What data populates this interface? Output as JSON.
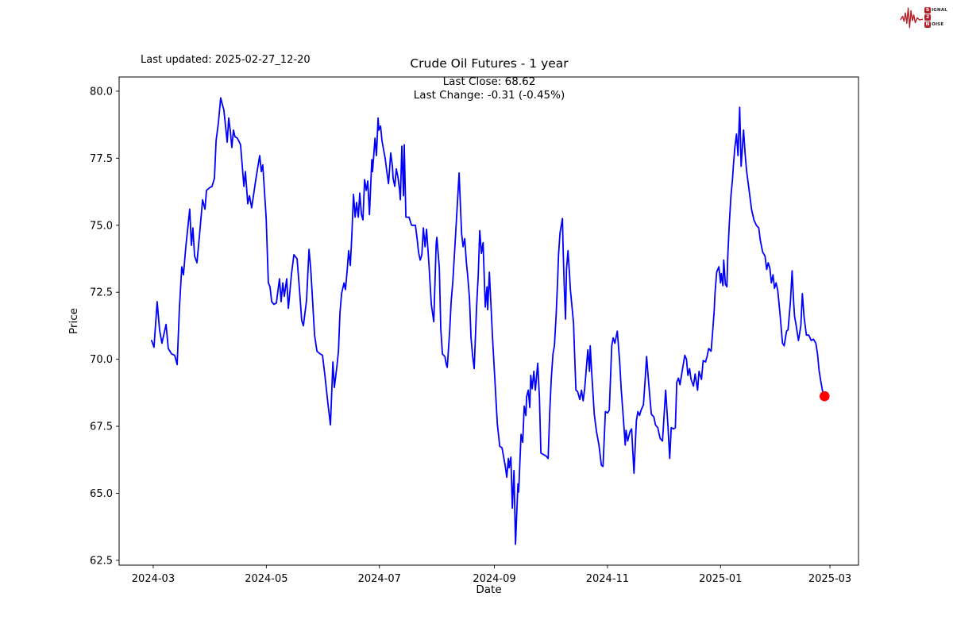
{
  "header": {
    "last_updated": "Last updated: 2025-02-27_12-20",
    "title": "Crude Oil Futures - 1 year",
    "annotation_line1": "Last Close: 68.62",
    "annotation_line2": "Last Change: -0.31 (-0.45%)"
  },
  "logo": {
    "rows": [
      {
        "badge": "S",
        "rest": "IGNAL"
      },
      {
        "badge": "2",
        "rest": ""
      },
      {
        "badge": "N",
        "rest": "OISE"
      }
    ],
    "color": "#b51f26"
  },
  "chart_data": {
    "type": "line",
    "title": "Crude Oil Futures - 1 year",
    "xlabel": "Date",
    "ylabel": "Price",
    "last_close": 68.62,
    "last_change": -0.31,
    "last_change_pct": "-0.45%",
    "line_color": "#0000ff",
    "marker_color": "#ff0000",
    "grid": false,
    "legend": "none",
    "y_ticks": [
      "62.5",
      "65.0",
      "67.5",
      "70.0",
      "72.5",
      "75.0",
      "77.5",
      "80.0"
    ],
    "ylim": [
      62.32,
      80.53
    ],
    "x_unit": "days since 2024-03-01",
    "xlim": [
      -18.4,
      380.4
    ],
    "x_ticks": [
      {
        "day": 0,
        "label": "2024-03"
      },
      {
        "day": 61,
        "label": "2024-05"
      },
      {
        "day": 122,
        "label": "2024-07"
      },
      {
        "day": 184,
        "label": "2024-09"
      },
      {
        "day": 245,
        "label": "2024-11"
      },
      {
        "day": 306,
        "label": "2025-01"
      },
      {
        "day": 365,
        "label": "2025-03"
      }
    ],
    "points": [
      [
        -0.9,
        70.7
      ],
      [
        0.4,
        70.45
      ],
      [
        2.1,
        72.15
      ],
      [
        3.4,
        71.1
      ],
      [
        4.7,
        70.6
      ],
      [
        6.9,
        71.3
      ],
      [
        8.1,
        70.4
      ],
      [
        9.9,
        70.2
      ],
      [
        11.6,
        70.15
      ],
      [
        12.9,
        69.8
      ],
      [
        14.1,
        71.9
      ],
      [
        15.4,
        73.45
      ],
      [
        16.3,
        73.15
      ],
      [
        17.6,
        74.2
      ],
      [
        19.7,
        75.6
      ],
      [
        20.6,
        74.25
      ],
      [
        21.4,
        74.9
      ],
      [
        22.3,
        73.85
      ],
      [
        23.6,
        73.6
      ],
      [
        24.9,
        74.6
      ],
      [
        26.6,
        75.95
      ],
      [
        27.9,
        75.6
      ],
      [
        28.7,
        76.3
      ],
      [
        30.4,
        76.4
      ],
      [
        31.7,
        76.45
      ],
      [
        33.0,
        76.75
      ],
      [
        33.9,
        78.15
      ],
      [
        35.1,
        78.8
      ],
      [
        36.4,
        79.75
      ],
      [
        37.3,
        79.5
      ],
      [
        38.1,
        79.3
      ],
      [
        39.9,
        78.1
      ],
      [
        40.7,
        79.0
      ],
      [
        41.6,
        78.5
      ],
      [
        42.4,
        77.9
      ],
      [
        43.3,
        78.55
      ],
      [
        44.1,
        78.3
      ],
      [
        45.4,
        78.25
      ],
      [
        47.1,
        78.0
      ],
      [
        48.9,
        76.45
      ],
      [
        49.7,
        77.0
      ],
      [
        51.0,
        75.8
      ],
      [
        51.9,
        76.1
      ],
      [
        53.1,
        75.65
      ],
      [
        55.3,
        76.7
      ],
      [
        57.4,
        77.6
      ],
      [
        58.3,
        77.0
      ],
      [
        59.1,
        77.25
      ],
      [
        60.9,
        75.3
      ],
      [
        62.1,
        72.85
      ],
      [
        63.0,
        72.7
      ],
      [
        63.9,
        72.15
      ],
      [
        65.1,
        72.05
      ],
      [
        66.4,
        72.1
      ],
      [
        68.1,
        73.0
      ],
      [
        69.0,
        72.15
      ],
      [
        69.9,
        72.85
      ],
      [
        70.7,
        72.35
      ],
      [
        72.0,
        73.0
      ],
      [
        72.9,
        71.9
      ],
      [
        74.6,
        73.2
      ],
      [
        75.9,
        73.9
      ],
      [
        77.6,
        73.75
      ],
      [
        78.9,
        72.6
      ],
      [
        80.1,
        71.45
      ],
      [
        81.0,
        71.25
      ],
      [
        82.7,
        72.2
      ],
      [
        84.0,
        74.1
      ],
      [
        84.9,
        73.4
      ],
      [
        85.7,
        72.5
      ],
      [
        87.0,
        70.9
      ],
      [
        88.3,
        70.3
      ],
      [
        90.0,
        70.2
      ],
      [
        91.3,
        70.15
      ],
      [
        92.6,
        69.4
      ],
      [
        94.3,
        68.3
      ],
      [
        95.6,
        67.55
      ],
      [
        96.9,
        69.9
      ],
      [
        97.7,
        68.95
      ],
      [
        99.0,
        69.7
      ],
      [
        99.9,
        70.3
      ],
      [
        100.7,
        71.7
      ],
      [
        101.6,
        72.45
      ],
      [
        102.9,
        72.85
      ],
      [
        103.7,
        72.6
      ],
      [
        104.6,
        73.3
      ],
      [
        105.4,
        74.05
      ],
      [
        106.3,
        73.5
      ],
      [
        107.1,
        74.6
      ],
      [
        108.0,
        76.15
      ],
      [
        108.9,
        75.3
      ],
      [
        109.7,
        75.85
      ],
      [
        110.6,
        75.3
      ],
      [
        111.4,
        76.2
      ],
      [
        112.3,
        75.4
      ],
      [
        113.1,
        75.2
      ],
      [
        114.0,
        76.7
      ],
      [
        114.9,
        76.3
      ],
      [
        115.7,
        76.65
      ],
      [
        116.6,
        75.4
      ],
      [
        117.9,
        77.45
      ],
      [
        118.3,
        77.0
      ],
      [
        119.6,
        78.25
      ],
      [
        120.4,
        77.6
      ],
      [
        121.3,
        79.0
      ],
      [
        121.7,
        78.55
      ],
      [
        122.6,
        78.7
      ],
      [
        123.4,
        78.15
      ],
      [
        124.3,
        77.8
      ],
      [
        125.1,
        77.5
      ],
      [
        126.0,
        77.0
      ],
      [
        126.9,
        76.55
      ],
      [
        128.1,
        77.7
      ],
      [
        129.0,
        77.2
      ],
      [
        129.4,
        76.75
      ],
      [
        130.3,
        76.45
      ],
      [
        131.1,
        77.1
      ],
      [
        132.0,
        76.8
      ],
      [
        132.9,
        76.3
      ],
      [
        133.3,
        75.95
      ],
      [
        134.1,
        77.95
      ],
      [
        135.0,
        76.1
      ],
      [
        135.4,
        78.0
      ],
      [
        136.3,
        75.3
      ],
      [
        138.0,
        75.3
      ],
      [
        139.3,
        75.0
      ],
      [
        141.4,
        75.0
      ],
      [
        142.3,
        74.5
      ],
      [
        143.1,
        74.0
      ],
      [
        144.0,
        73.7
      ],
      [
        144.9,
        73.9
      ],
      [
        145.7,
        74.9
      ],
      [
        146.6,
        74.2
      ],
      [
        147.4,
        74.85
      ],
      [
        148.7,
        73.55
      ],
      [
        150.0,
        72.05
      ],
      [
        151.3,
        71.4
      ],
      [
        152.6,
        74.3
      ],
      [
        153.0,
        74.55
      ],
      [
        154.3,
        73.4
      ],
      [
        155.1,
        71.15
      ],
      [
        156.0,
        70.2
      ],
      [
        157.3,
        70.1
      ],
      [
        158.1,
        69.8
      ],
      [
        158.6,
        69.7
      ],
      [
        159.9,
        71.05
      ],
      [
        160.7,
        72.15
      ],
      [
        161.6,
        72.9
      ],
      [
        162.9,
        74.4
      ],
      [
        165.0,
        76.95
      ],
      [
        166.3,
        74.7
      ],
      [
        167.1,
        74.2
      ],
      [
        168.0,
        74.5
      ],
      [
        168.9,
        73.6
      ],
      [
        169.7,
        73.05
      ],
      [
        170.6,
        72.25
      ],
      [
        171.4,
        70.8
      ],
      [
        172.3,
        70.1
      ],
      [
        173.1,
        69.65
      ],
      [
        174.4,
        71.95
      ],
      [
        175.3,
        73.15
      ],
      [
        176.1,
        74.8
      ],
      [
        177.0,
        73.95
      ],
      [
        177.9,
        74.35
      ],
      [
        178.7,
        72.75
      ],
      [
        179.1,
        71.95
      ],
      [
        180.0,
        72.7
      ],
      [
        180.4,
        71.85
      ],
      [
        181.3,
        73.25
      ],
      [
        183.0,
        70.8
      ],
      [
        184.3,
        69.2
      ],
      [
        185.6,
        67.6
      ],
      [
        186.9,
        66.75
      ],
      [
        188.1,
        66.7
      ],
      [
        189.9,
        66.0
      ],
      [
        190.7,
        65.6
      ],
      [
        191.6,
        66.3
      ],
      [
        192.0,
        65.95
      ],
      [
        192.9,
        66.35
      ],
      [
        193.7,
        64.45
      ],
      [
        194.6,
        65.85
      ],
      [
        195.4,
        63.1
      ],
      [
        196.7,
        65.35
      ],
      [
        197.1,
        65.05
      ],
      [
        198.4,
        67.2
      ],
      [
        199.3,
        66.9
      ],
      [
        200.1,
        68.25
      ],
      [
        201.0,
        67.9
      ],
      [
        201.4,
        68.6
      ],
      [
        202.3,
        68.85
      ],
      [
        203.1,
        68.2
      ],
      [
        203.6,
        69.4
      ],
      [
        204.4,
        68.9
      ],
      [
        205.3,
        69.55
      ],
      [
        206.1,
        68.85
      ],
      [
        207.4,
        69.85
      ],
      [
        208.3,
        68.6
      ],
      [
        209.1,
        66.5
      ],
      [
        210.4,
        66.45
      ],
      [
        211.7,
        66.4
      ],
      [
        213.0,
        66.3
      ],
      [
        213.9,
        68.1
      ],
      [
        214.7,
        69.3
      ],
      [
        215.6,
        70.2
      ],
      [
        216.4,
        70.5
      ],
      [
        217.3,
        71.6
      ],
      [
        218.1,
        72.9
      ],
      [
        218.6,
        73.9
      ],
      [
        219.4,
        74.7
      ],
      [
        220.7,
        75.25
      ],
      [
        221.1,
        74.1
      ],
      [
        221.6,
        72.9
      ],
      [
        222.4,
        71.5
      ],
      [
        222.9,
        73.35
      ],
      [
        223.7,
        74.05
      ],
      [
        224.6,
        73.1
      ],
      [
        225.0,
        72.6
      ],
      [
        226.7,
        71.35
      ],
      [
        227.1,
        70.55
      ],
      [
        228.0,
        68.85
      ],
      [
        228.9,
        68.8
      ],
      [
        230.1,
        68.5
      ],
      [
        231.0,
        68.85
      ],
      [
        231.9,
        68.45
      ],
      [
        232.7,
        68.9
      ],
      [
        234.4,
        70.35
      ],
      [
        235.3,
        69.55
      ],
      [
        235.7,
        70.5
      ],
      [
        236.6,
        69.4
      ],
      [
        237.9,
        67.95
      ],
      [
        239.1,
        67.3
      ],
      [
        240.4,
        66.8
      ],
      [
        241.7,
        66.05
      ],
      [
        242.6,
        66.0
      ],
      [
        243.9,
        68.05
      ],
      [
        245.1,
        68.0
      ],
      [
        246.0,
        68.1
      ],
      [
        247.3,
        70.5
      ],
      [
        248.1,
        70.8
      ],
      [
        249.0,
        70.6
      ],
      [
        250.3,
        71.05
      ],
      [
        251.6,
        69.9
      ],
      [
        252.4,
        68.9
      ],
      [
        253.3,
        68.05
      ],
      [
        254.6,
        66.8
      ],
      [
        255.0,
        67.35
      ],
      [
        255.9,
        66.95
      ],
      [
        257.1,
        67.3
      ],
      [
        258.0,
        67.4
      ],
      [
        259.3,
        65.75
      ],
      [
        260.6,
        67.7
      ],
      [
        261.4,
        68.05
      ],
      [
        262.3,
        67.9
      ],
      [
        263.1,
        68.1
      ],
      [
        264.4,
        68.3
      ],
      [
        265.3,
        69.2
      ],
      [
        266.1,
        70.1
      ],
      [
        267.0,
        69.3
      ],
      [
        267.9,
        68.55
      ],
      [
        268.7,
        67.95
      ],
      [
        270.0,
        67.85
      ],
      [
        270.9,
        67.55
      ],
      [
        272.1,
        67.45
      ],
      [
        273.4,
        67.05
      ],
      [
        274.7,
        66.95
      ],
      [
        276.4,
        68.85
      ],
      [
        277.7,
        67.45
      ],
      [
        278.6,
        66.3
      ],
      [
        279.4,
        67.45
      ],
      [
        280.7,
        67.4
      ],
      [
        281.6,
        67.45
      ],
      [
        282.4,
        69.15
      ],
      [
        283.3,
        69.3
      ],
      [
        284.1,
        69.05
      ],
      [
        285.4,
        69.6
      ],
      [
        286.7,
        70.15
      ],
      [
        287.6,
        70.0
      ],
      [
        288.4,
        69.4
      ],
      [
        289.3,
        69.65
      ],
      [
        290.1,
        69.25
      ],
      [
        291.4,
        69.0
      ],
      [
        292.3,
        69.45
      ],
      [
        293.6,
        68.85
      ],
      [
        294.4,
        69.55
      ],
      [
        295.7,
        69.25
      ],
      [
        296.6,
        69.95
      ],
      [
        297.9,
        69.9
      ],
      [
        298.7,
        70.1
      ],
      [
        299.6,
        70.4
      ],
      [
        300.9,
        70.3
      ],
      [
        301.7,
        71.0
      ],
      [
        302.6,
        71.85
      ],
      [
        303.0,
        72.45
      ],
      [
        303.9,
        73.25
      ],
      [
        305.1,
        73.45
      ],
      [
        306.0,
        72.85
      ],
      [
        306.4,
        73.2
      ],
      [
        307.3,
        72.75
      ],
      [
        307.7,
        73.7
      ],
      [
        308.6,
        72.8
      ],
      [
        309.4,
        72.7
      ],
      [
        309.9,
        73.85
      ],
      [
        310.7,
        75.05
      ],
      [
        311.6,
        76.1
      ],
      [
        312.4,
        76.7
      ],
      [
        312.9,
        77.2
      ],
      [
        313.7,
        77.9
      ],
      [
        314.6,
        78.4
      ],
      [
        315.4,
        77.6
      ],
      [
        316.3,
        79.4
      ],
      [
        317.1,
        77.2
      ],
      [
        318.4,
        78.55
      ],
      [
        319.3,
        77.6
      ],
      [
        320.1,
        77.0
      ],
      [
        321.4,
        76.3
      ],
      [
        322.7,
        75.6
      ],
      [
        324.0,
        75.2
      ],
      [
        325.3,
        75.0
      ],
      [
        326.6,
        74.9
      ],
      [
        327.4,
        74.45
      ],
      [
        328.7,
        74.0
      ],
      [
        330.0,
        73.85
      ],
      [
        330.9,
        73.35
      ],
      [
        331.7,
        73.6
      ],
      [
        332.6,
        73.4
      ],
      [
        333.4,
        72.85
      ],
      [
        334.3,
        73.15
      ],
      [
        335.1,
        72.65
      ],
      [
        336.0,
        72.85
      ],
      [
        336.9,
        72.55
      ],
      [
        338.1,
        71.65
      ],
      [
        339.4,
        70.6
      ],
      [
        340.3,
        70.5
      ],
      [
        341.6,
        71.05
      ],
      [
        342.4,
        71.1
      ],
      [
        343.7,
        72.15
      ],
      [
        344.6,
        73.3
      ],
      [
        345.4,
        72.15
      ],
      [
        345.9,
        71.6
      ],
      [
        346.7,
        71.3
      ],
      [
        348.0,
        70.7
      ],
      [
        349.3,
        71.25
      ],
      [
        350.1,
        72.45
      ],
      [
        351.0,
        71.6
      ],
      [
        352.3,
        70.9
      ],
      [
        353.6,
        70.9
      ],
      [
        354.9,
        70.7
      ],
      [
        356.1,
        70.75
      ],
      [
        357.4,
        70.6
      ],
      [
        358.3,
        70.2
      ],
      [
        359.1,
        69.6
      ],
      [
        360.0,
        69.2
      ],
      [
        360.9,
        68.85
      ],
      [
        362.1,
        68.62
      ]
    ]
  }
}
